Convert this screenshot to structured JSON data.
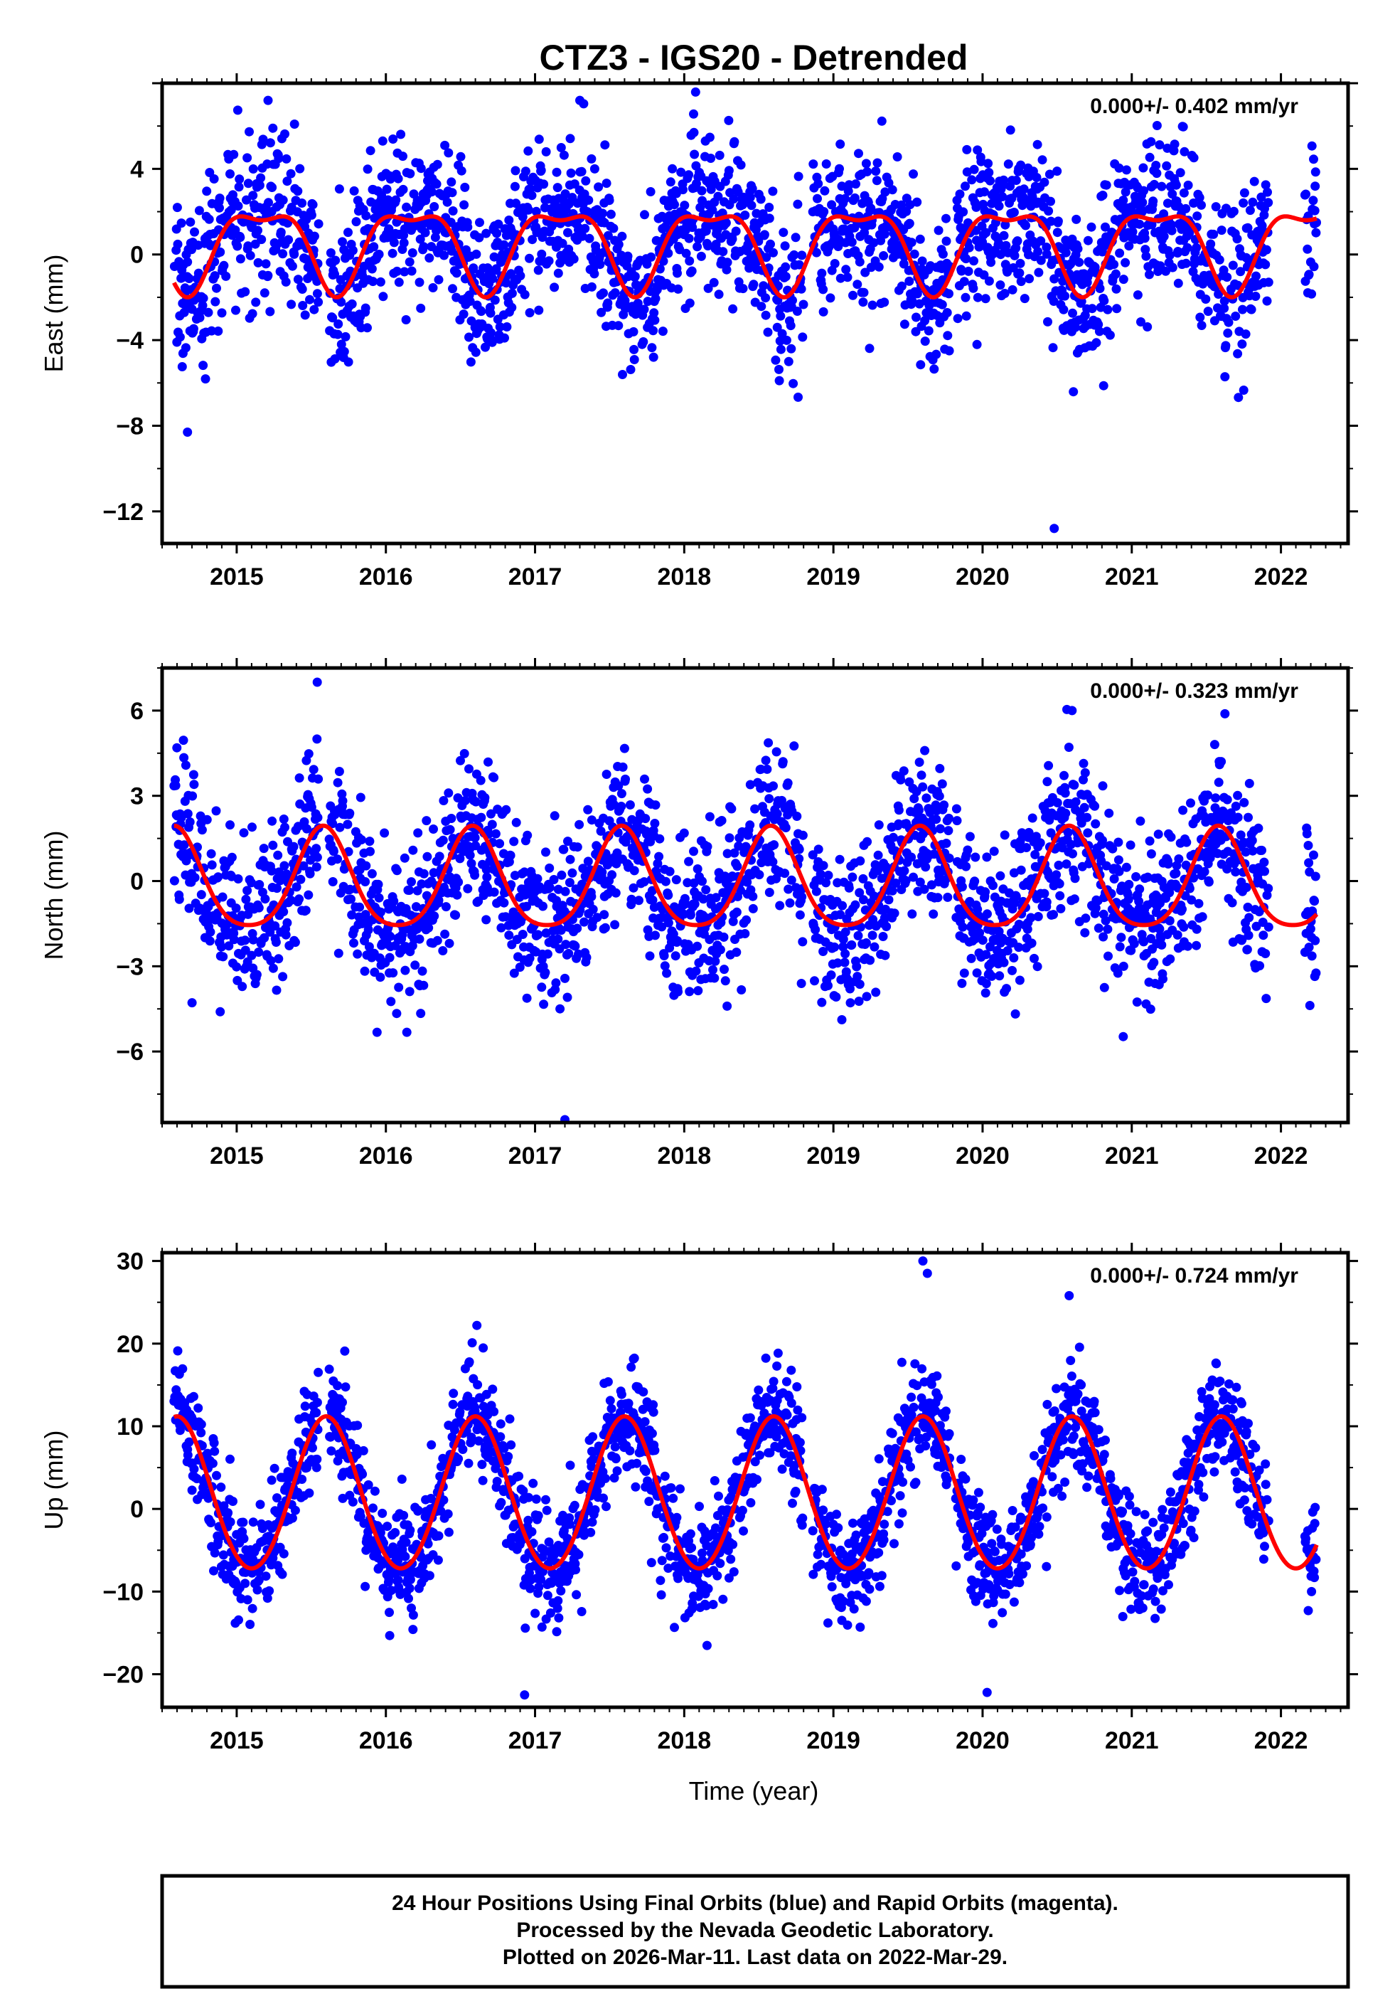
{
  "title": "CTZ3 - IGS20 - Detrended",
  "x_axis_label": "Time (year)",
  "colors": {
    "final_orbits": "#0000ff",
    "rapid_orbits": "#ff00ff",
    "fit": "#ff0000",
    "frame": "#000000"
  },
  "footer": {
    "line1": "24 Hour Positions Using Final Orbits (blue) and Rapid Orbits (magenta).",
    "line2": "Processed by the Nevada Geodetic Laboratory.",
    "line3": "Plotted on 2026-Mar-11. Last data on 2022-Mar-29."
  },
  "chart_data": [
    {
      "type": "scatter",
      "component": "east",
      "ylabel": "East (mm)",
      "rate_text": "0.000+/- 0.402 mm/yr",
      "xlim": [
        2014.5,
        2022.45
      ],
      "ylim": [
        -13.5,
        8
      ],
      "x_ticks": [
        2015,
        2016,
        2017,
        2018,
        2019,
        2020,
        2021,
        2022
      ],
      "y_ticks": [
        4,
        0,
        -4,
        -8,
        -12
      ],
      "y_tick_labels": [
        "4",
        "0",
        "−4",
        "−8",
        "−12"
      ],
      "data_start": 2014.58,
      "data_end": 2022.24,
      "seasonal_fit": {
        "offset": 0.5,
        "annual_amp": 1.8,
        "annual_peak": 2015.17,
        "semiannual_amp": 0.7,
        "semiannual_peak": 2014.92
      },
      "scatter_sigma": 1.8,
      "outliers": [
        [
          2014.67,
          -8.3
        ],
        [
          2020.48,
          -12.8
        ],
        [
          2017.3,
          7.2
        ],
        [
          2015.21,
          7.2
        ]
      ]
    },
    {
      "type": "scatter",
      "component": "north",
      "ylabel": "North (mm)",
      "rate_text": "0.000+/- 0.323 mm/yr",
      "xlim": [
        2014.5,
        2022.45
      ],
      "ylim": [
        -8.5,
        7.5
      ],
      "x_ticks": [
        2015,
        2016,
        2017,
        2018,
        2019,
        2020,
        2021,
        2022
      ],
      "y_ticks": [
        6,
        3,
        0,
        -3,
        -6
      ],
      "y_tick_labels": [
        "6",
        "3",
        "0",
        "−3",
        "−6"
      ],
      "data_start": 2014.58,
      "data_end": 2022.24,
      "seasonal_fit": {
        "offset": -0.1,
        "annual_amp": 1.75,
        "annual_peak": 2014.58,
        "semiannual_amp": 0.3,
        "semiannual_peak": 2014.58
      },
      "scatter_sigma": 1.4,
      "outliers": [
        [
          2017.2,
          -8.4
        ],
        [
          2015.54,
          7.0
        ],
        [
          2020.6,
          6.0
        ]
      ]
    },
    {
      "type": "scatter",
      "component": "up",
      "ylabel": "Up (mm)",
      "rate_text": "0.000+/- 0.724 mm/yr",
      "xlim": [
        2014.5,
        2022.45
      ],
      "ylim": [
        -24,
        31
      ],
      "x_ticks": [
        2015,
        2016,
        2017,
        2018,
        2019,
        2020,
        2021,
        2022
      ],
      "y_ticks": [
        30,
        20,
        10,
        0,
        -10,
        -20
      ],
      "y_tick_labels": [
        "30",
        "20",
        "10",
        "0",
        "−10",
        "−20"
      ],
      "data_start": 2014.58,
      "data_end": 2022.24,
      "seasonal_fit": {
        "offset": 1.6,
        "annual_amp": 9.2,
        "annual_peak": 2014.6,
        "semiannual_amp": 0.4,
        "semiannual_peak": 2014.6
      },
      "scatter_sigma": 3.4,
      "outliers": [
        [
          2019.6,
          30
        ],
        [
          2019.63,
          28.5
        ],
        [
          2016.61,
          22.2
        ],
        [
          2020.58,
          25.8
        ],
        [
          2020.03,
          -22.2
        ],
        [
          2016.93,
          -22.5
        ]
      ]
    }
  ]
}
